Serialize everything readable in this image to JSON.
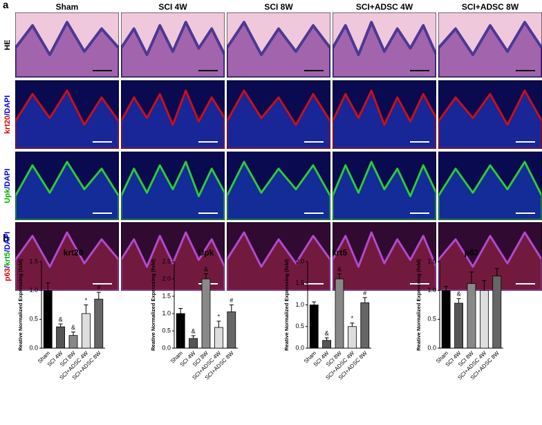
{
  "panel_labels": [
    "a",
    "b"
  ],
  "column_headers": [
    "Sham",
    "SCI 4W",
    "SCI 8W",
    "SCI+ADSC 4W",
    "SCI+ADSC 8W"
  ],
  "row_labels": [
    [
      "HE"
    ],
    [
      "krt20",
      "/DAPI"
    ],
    [
      "Upk",
      "/DAPI"
    ],
    [
      "p63",
      "/",
      "krt5",
      "/DAPI"
    ]
  ],
  "chart_data": [
    {
      "type": "bar",
      "title": "krt20",
      "y_label": "Reative Normalized Expressing (fold)",
      "categories": [
        "Sham",
        "SCI 4W",
        "SCI 8W",
        "SCI+ADSC 4W",
        "SCI+ADSC 8W"
      ],
      "values": [
        1.0,
        0.37,
        0.22,
        0.6,
        0.85
      ],
      "errors": [
        0.13,
        0.05,
        0.06,
        0.15,
        0.12
      ],
      "markers": [
        null,
        "&",
        "&",
        "*",
        "#"
      ],
      "colors": [
        "#000000",
        "#555555",
        "#888888",
        "#dddddd",
        "#666666"
      ],
      "ylim": [
        0,
        1.5
      ],
      "yticks": [
        {
          "value": 0,
          "label": "0.0"
        },
        {
          "value": 0.5,
          "label": "0.5"
        },
        {
          "value": 1,
          "label": "1.0"
        },
        {
          "value": 1.5,
          "label": "1.5"
        }
      ]
    },
    {
      "type": "bar",
      "title": "Upk",
      "y_label": "Reative Normalized Expressing (fold)",
      "categories": [
        "Sham",
        "SCI 4W",
        "SCI 8W",
        "SCI+ADSC 4W",
        "SCI+ADSC 8W"
      ],
      "values": [
        1.0,
        0.28,
        2.0,
        0.6,
        1.05
      ],
      "errors": [
        0.15,
        0.08,
        0.15,
        0.18,
        0.2
      ],
      "markers": [
        null,
        "&",
        "&",
        "*",
        "#"
      ],
      "colors": [
        "#000000",
        "#555555",
        "#888888",
        "#dddddd",
        "#666666"
      ],
      "ylim": [
        0,
        2.5
      ],
      "yticks": [
        {
          "value": 0,
          "label": "0.0"
        },
        {
          "value": 0.5,
          "label": "0.5"
        },
        {
          "value": 1,
          "label": "1.0"
        },
        {
          "value": 1.5,
          "label": "1.5"
        },
        {
          "value": 2,
          "label": "2.0"
        },
        {
          "value": 2.5,
          "label": "2.5"
        }
      ]
    },
    {
      "type": "bar",
      "title": "krt5",
      "y_label": "Reative Normalized Expressing (fold)",
      "categories": [
        "Sham",
        "SCI 4W",
        "SCI 8W",
        "SCI+ADSC 4W",
        "SCI+ADSC 8W"
      ],
      "values": [
        1.0,
        0.18,
        1.6,
        0.5,
        1.05
      ],
      "errors": [
        0.07,
        0.06,
        0.12,
        0.08,
        0.12
      ],
      "markers": [
        null,
        "&",
        "&",
        "*",
        "#"
      ],
      "colors": [
        "#000000",
        "#555555",
        "#888888",
        "#dddddd",
        "#666666"
      ],
      "ylim": [
        0,
        2.0
      ],
      "yticks": [
        {
          "value": 0,
          "label": "0.0"
        },
        {
          "value": 0.5,
          "label": "0.5"
        },
        {
          "value": 1,
          "label": "1.0"
        },
        {
          "value": 1.5,
          "label": "1.5"
        },
        {
          "value": 2,
          "label": "2.0"
        }
      ]
    },
    {
      "type": "bar",
      "title": "p63",
      "y_label": "Reative Normalized Expressing (fold)",
      "categories": [
        "Sham",
        "SCI 4W",
        "SCI 8W",
        "SCI+ADSC 4W",
        "SCI+ADSC 8W"
      ],
      "values": [
        1.0,
        0.78,
        1.12,
        1.0,
        1.25
      ],
      "errors": [
        0.07,
        0.08,
        0.2,
        0.17,
        0.13
      ],
      "markers": [
        null,
        "&",
        null,
        null,
        null
      ],
      "colors": [
        "#000000",
        "#555555",
        "#888888",
        "#dddddd",
        "#666666"
      ],
      "ylim": [
        0,
        1.5
      ],
      "yticks": [
        {
          "value": 0,
          "label": "0.0"
        },
        {
          "value": 0.5,
          "label": "0.5"
        },
        {
          "value": 1,
          "label": "1.0"
        },
        {
          "value": 1.5,
          "label": "1.5"
        }
      ]
    }
  ]
}
